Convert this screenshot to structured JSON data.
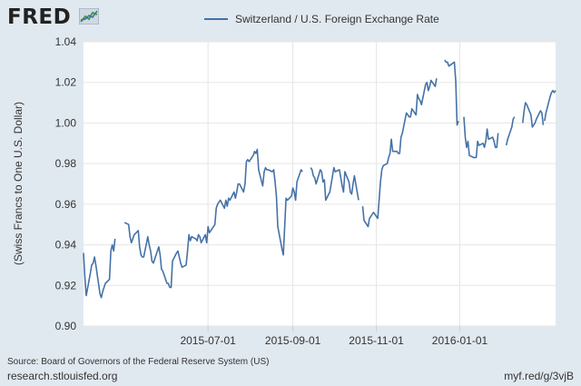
{
  "logo": {
    "text": "FRED"
  },
  "chart_data": {
    "type": "line",
    "title": "",
    "xlabel": "",
    "ylabel": "(Swiss Francs to One U.S. Dollar)",
    "legend_position": "top-center",
    "grid": true,
    "ylim": [
      0.9,
      1.04
    ],
    "yticks": [
      "0.90",
      "0.92",
      "0.94",
      "0.96",
      "0.98",
      "1.00",
      "1.02",
      "1.04"
    ],
    "xlim": [
      "2015-04-01",
      "2016-03-11"
    ],
    "xticks": [
      "2015-07-01",
      "2015-09-01",
      "2015-11-01",
      "2016-01-01"
    ],
    "series": [
      {
        "name": "Switzerland / U.S. Foreign Exchange Rate",
        "color": "#4572a7",
        "segments": [
          [
            [
              "2015-04-01",
              0.936
            ],
            [
              "2015-04-02",
              0.924
            ],
            [
              "2015-04-03",
              0.915
            ],
            [
              "2015-04-06",
              0.926
            ],
            [
              "2015-04-07",
              0.93
            ],
            [
              "2015-04-08",
              0.931
            ],
            [
              "2015-04-09",
              0.934
            ],
            [
              "2015-04-10",
              0.93
            ],
            [
              "2015-04-13",
              0.916
            ],
            [
              "2015-04-14",
              0.914
            ],
            [
              "2015-04-15",
              0.917
            ],
            [
              "2015-04-16",
              0.919
            ],
            [
              "2015-04-17",
              0.921
            ],
            [
              "2015-04-20",
              0.923
            ],
            [
              "2015-04-21",
              0.937
            ],
            [
              "2015-04-22",
              0.94
            ],
            [
              "2015-04-23",
              0.937
            ],
            [
              "2015-04-24",
              0.943
            ]
          ],
          [
            [
              "2015-05-01",
              0.951
            ],
            [
              "2015-05-04",
              0.95
            ],
            [
              "2015-05-05",
              0.944
            ],
            [
              "2015-05-06",
              0.941
            ],
            [
              "2015-05-07",
              0.943
            ],
            [
              "2015-05-08",
              0.945
            ],
            [
              "2015-05-11",
              0.947
            ],
            [
              "2015-05-12",
              0.939
            ],
            [
              "2015-05-13",
              0.935
            ],
            [
              "2015-05-14",
              0.934
            ],
            [
              "2015-05-15",
              0.934
            ],
            [
              "2015-05-18",
              0.944
            ],
            [
              "2015-05-19",
              0.94
            ],
            [
              "2015-05-20",
              0.937
            ],
            [
              "2015-05-21",
              0.932
            ],
            [
              "2015-05-22",
              0.931
            ],
            [
              "2015-05-26",
              0.939
            ],
            [
              "2015-05-27",
              0.935
            ],
            [
              "2015-05-28",
              0.928
            ],
            [
              "2015-05-29",
              0.927
            ],
            [
              "2015-06-01",
              0.921
            ],
            [
              "2015-06-02",
              0.921
            ],
            [
              "2015-06-03",
              0.919
            ],
            [
              "2015-06-04",
              0.919
            ],
            [
              "2015-06-05",
              0.932
            ],
            [
              "2015-06-08",
              0.936
            ],
            [
              "2015-06-09",
              0.937
            ],
            [
              "2015-06-10",
              0.934
            ],
            [
              "2015-06-11",
              0.931
            ],
            [
              "2015-06-12",
              0.929
            ],
            [
              "2015-06-15",
              0.93
            ],
            [
              "2015-06-16",
              0.937
            ],
            [
              "2015-06-17",
              0.945
            ],
            [
              "2015-06-18",
              0.942
            ],
            [
              "2015-06-19",
              0.944
            ],
            [
              "2015-06-22",
              0.943
            ],
            [
              "2015-06-23",
              0.942
            ],
            [
              "2015-06-24",
              0.945
            ],
            [
              "2015-06-25",
              0.944
            ],
            [
              "2015-06-26",
              0.941
            ],
            [
              "2015-06-29",
              0.945
            ],
            [
              "2015-06-30",
              0.941
            ],
            [
              "2015-07-01",
              0.949
            ],
            [
              "2015-07-02",
              0.946
            ],
            [
              "2015-07-06",
              0.95
            ],
            [
              "2015-07-07",
              0.958
            ],
            [
              "2015-07-08",
              0.96
            ],
            [
              "2015-07-09",
              0.961
            ],
            [
              "2015-07-10",
              0.962
            ],
            [
              "2015-07-13",
              0.958
            ],
            [
              "2015-07-14",
              0.962
            ],
            [
              "2015-07-15",
              0.959
            ],
            [
              "2015-07-16",
              0.963
            ],
            [
              "2015-07-17",
              0.962
            ],
            [
              "2015-07-20",
              0.966
            ],
            [
              "2015-07-21",
              0.963
            ],
            [
              "2015-07-22",
              0.966
            ],
            [
              "2015-07-23",
              0.97
            ],
            [
              "2015-07-24",
              0.97
            ],
            [
              "2015-07-27",
              0.966
            ],
            [
              "2015-07-28",
              0.97
            ],
            [
              "2015-07-29",
              0.981
            ],
            [
              "2015-07-30",
              0.982
            ],
            [
              "2015-07-31",
              0.981
            ],
            [
              "2015-08-03",
              0.984
            ],
            [
              "2015-08-04",
              0.986
            ],
            [
              "2015-08-05",
              0.985
            ],
            [
              "2015-08-06",
              0.987
            ],
            [
              "2015-08-07",
              0.977
            ],
            [
              "2015-08-10",
              0.969
            ],
            [
              "2015-08-11",
              0.976
            ],
            [
              "2015-08-12",
              0.978
            ],
            [
              "2015-08-13",
              0.977
            ],
            [
              "2015-08-14",
              0.977
            ],
            [
              "2015-08-17",
              0.976
            ],
            [
              "2015-08-18",
              0.977
            ],
            [
              "2015-08-19",
              0.971
            ],
            [
              "2015-08-20",
              0.964
            ],
            [
              "2015-08-21",
              0.949
            ],
            [
              "2015-08-24",
              0.938
            ],
            [
              "2015-08-25",
              0.935
            ],
            [
              "2015-08-26",
              0.949
            ],
            [
              "2015-08-27",
              0.963
            ],
            [
              "2015-08-28",
              0.962
            ],
            [
              "2015-08-31",
              0.964
            ],
            [
              "2015-09-01",
              0.968
            ],
            [
              "2015-09-02",
              0.966
            ],
            [
              "2015-09-03",
              0.962
            ],
            [
              "2015-09-04",
              0.971
            ],
            [
              "2015-09-07",
              0.977
            ],
            [
              "2015-09-08",
              0.976
            ]
          ],
          [
            [
              "2015-09-14",
              0.978
            ],
            [
              "2015-09-15",
              0.977
            ],
            [
              "2015-09-16",
              0.974
            ],
            [
              "2015-09-17",
              0.973
            ],
            [
              "2015-09-18",
              0.97
            ],
            [
              "2015-09-21",
              0.977
            ],
            [
              "2015-09-22",
              0.976
            ],
            [
              "2015-09-23",
              0.971
            ],
            [
              "2015-09-24",
              0.972
            ],
            [
              "2015-09-25",
              0.962
            ],
            [
              "2015-09-28",
              0.966
            ],
            [
              "2015-09-29",
              0.97
            ],
            [
              "2015-09-30",
              0.974
            ],
            [
              "2015-10-01",
              0.978
            ],
            [
              "2015-10-02",
              0.976
            ],
            [
              "2015-10-05",
              0.977
            ],
            [
              "2015-10-06",
              0.973
            ],
            [
              "2015-10-07",
              0.969
            ],
            [
              "2015-10-08",
              0.966
            ],
            [
              "2015-10-09",
              0.976
            ],
            [
              "2015-10-12",
              0.971
            ],
            [
              "2015-10-13",
              0.966
            ],
            [
              "2015-10-14",
              0.965
            ],
            [
              "2015-10-15",
              0.97
            ],
            [
              "2015-10-16",
              0.974
            ],
            [
              "2015-10-19",
              0.962
            ]
          ],
          [
            [
              "2015-10-22",
              0.959
            ],
            [
              "2015-10-23",
              0.952
            ],
            [
              "2015-10-26",
              0.949
            ],
            [
              "2015-10-27",
              0.953
            ],
            [
              "2015-10-28",
              0.954
            ],
            [
              "2015-10-29",
              0.955
            ],
            [
              "2015-10-30",
              0.956
            ],
            [
              "2015-11-02",
              0.953
            ],
            [
              "2015-11-03",
              0.962
            ],
            [
              "2015-11-04",
              0.971
            ],
            [
              "2015-11-05",
              0.977
            ],
            [
              "2015-11-06",
              0.979
            ],
            [
              "2015-11-09",
              0.98
            ],
            [
              "2015-11-10",
              0.983
            ],
            [
              "2015-11-11",
              0.985
            ],
            [
              "2015-11-12",
              0.992
            ],
            [
              "2015-11-13",
              0.986
            ],
            [
              "2015-11-16",
              0.986
            ],
            [
              "2015-11-17",
              0.985
            ],
            [
              "2015-11-18",
              0.985
            ],
            [
              "2015-11-19",
              0.993
            ],
            [
              "2015-11-20",
              0.995
            ],
            [
              "2015-11-23",
              1.005
            ],
            [
              "2015-11-24",
              1.004
            ],
            [
              "2015-11-25",
              1.003
            ],
            [
              "2015-11-26",
              1.003
            ],
            [
              "2015-11-27",
              1.007
            ],
            [
              "2015-11-30",
              1.004
            ],
            [
              "2015-12-01",
              1.014
            ],
            [
              "2015-12-02",
              1.012
            ],
            [
              "2015-12-03",
              1.011
            ],
            [
              "2015-12-04",
              1.009
            ],
            [
              "2015-12-07",
              1.019
            ],
            [
              "2015-12-08",
              1.02
            ],
            [
              "2015-12-09",
              1.016
            ],
            [
              "2015-12-10",
              1.018
            ],
            [
              "2015-12-11",
              1.021
            ],
            [
              "2015-12-14",
              1.018
            ],
            [
              "2015-12-15",
              1.022
            ]
          ],
          [
            [
              "2015-12-21",
              1.031
            ],
            [
              "2015-12-22",
              1.03
            ],
            [
              "2015-12-23",
              1.03
            ],
            [
              "2015-12-24",
              1.028
            ],
            [
              "2015-12-28",
              1.03
            ],
            [
              "2015-12-29",
              1.021
            ],
            [
              "2015-12-30",
              0.999
            ],
            [
              "2015-12-31",
              1.001
            ]
          ],
          [
            [
              "2016-01-04",
              1.003
            ],
            [
              "2016-01-05",
              0.993
            ],
            [
              "2016-01-06",
              0.988
            ],
            [
              "2016-01-07",
              0.991
            ],
            [
              "2016-01-08",
              0.984
            ],
            [
              "2016-01-11",
              0.983
            ],
            [
              "2016-01-12",
              0.983
            ],
            [
              "2016-01-13",
              0.983
            ],
            [
              "2016-01-14",
              0.991
            ],
            [
              "2016-01-15",
              0.989
            ],
            [
              "2016-01-18",
              0.99
            ],
            [
              "2016-01-19",
              0.988
            ],
            [
              "2016-01-20",
              0.991
            ],
            [
              "2016-01-21",
              0.997
            ],
            [
              "2016-01-22",
              0.992
            ],
            [
              "2016-01-25",
              0.993
            ],
            [
              "2016-01-26",
              0.991
            ],
            [
              "2016-01-27",
              0.988
            ],
            [
              "2016-01-28",
              0.988
            ],
            [
              "2016-01-29",
              0.995
            ]
          ],
          [
            [
              "2016-02-04",
              0.989
            ],
            [
              "2016-02-05",
              0.992
            ],
            [
              "2016-02-08",
              0.998
            ],
            [
              "2016-02-09",
              1.002
            ],
            [
              "2016-02-10",
              1.003
            ]
          ],
          [
            [
              "2016-02-16",
              1.0
            ],
            [
              "2016-02-17",
              1.006
            ],
            [
              "2016-02-18",
              1.01
            ],
            [
              "2016-02-19",
              1.009
            ],
            [
              "2016-02-22",
              1.004
            ],
            [
              "2016-02-23",
              0.998
            ],
            [
              "2016-02-24",
              0.999
            ],
            [
              "2016-02-25",
              1.0
            ],
            [
              "2016-02-26",
              1.002
            ],
            [
              "2016-02-29",
              1.006
            ],
            [
              "2016-03-01",
              1.005
            ],
            [
              "2016-03-02",
              0.999
            ]
          ],
          [
            [
              "2016-03-03",
              1.001
            ],
            [
              "2016-03-04",
              1.005
            ],
            [
              "2016-03-07",
              1.013
            ],
            [
              "2016-03-08",
              1.015
            ],
            [
              "2016-03-09",
              1.016
            ],
            [
              "2016-03-10",
              1.015
            ],
            [
              "2016-03-11",
              1.016
            ]
          ]
        ]
      }
    ]
  },
  "footer": {
    "source": "Source: Board of Governors of the Federal Reserve System (US)",
    "site": "research.stlouisfed.org",
    "link": "myf.red/g/3vjB"
  }
}
